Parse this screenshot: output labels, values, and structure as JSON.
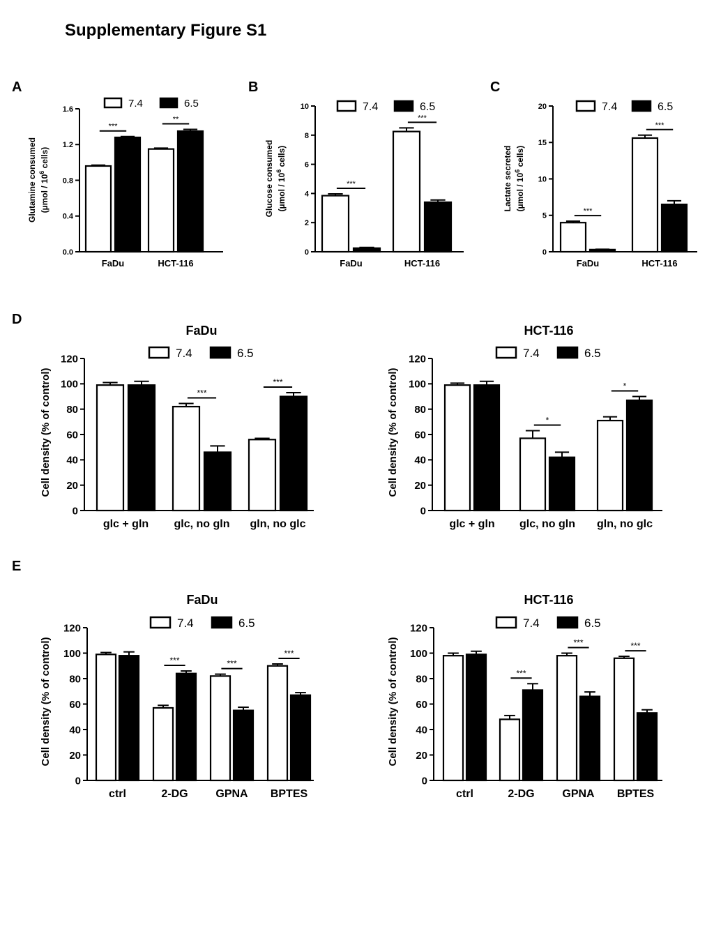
{
  "page_title": "Supplementary Figure S1",
  "panel_labels": [
    "A",
    "B",
    "C",
    "D",
    "E"
  ],
  "legend": {
    "white": "7.4",
    "black": "6.5"
  },
  "chart_data": [
    {
      "id": "A",
      "type": "bar",
      "title": "",
      "categories": [
        "FaDu",
        "HCT-116"
      ],
      "series": [
        {
          "name": "7.4",
          "values": [
            0.96,
            1.15
          ],
          "errors": [
            0.01,
            0.01
          ],
          "color": "#ffffff"
        },
        {
          "name": "6.5",
          "values": [
            1.28,
            1.35
          ],
          "errors": [
            0.01,
            0.02
          ],
          "color": "#000000"
        }
      ],
      "ylabel_lines": [
        "Glutamine consumed",
        "(µmol / 10",
        "6",
        " cells)"
      ],
      "ylim": [
        0,
        1.6
      ],
      "yticks": [
        "0.0",
        "0.4",
        "0.8",
        "1.2",
        "1.6"
      ],
      "ytick_values": [
        0,
        0.4,
        0.8,
        1.2,
        1.6
      ],
      "significance": [
        "***",
        "**"
      ],
      "legend_placement": "top"
    },
    {
      "id": "B",
      "type": "bar",
      "title": "",
      "categories": [
        "FaDu",
        "HCT-116"
      ],
      "series": [
        {
          "name": "7.4",
          "values": [
            3.85,
            8.25
          ],
          "errors": [
            0.12,
            0.25
          ],
          "color": "#ffffff"
        },
        {
          "name": "6.5",
          "values": [
            0.25,
            3.4
          ],
          "errors": [
            0.05,
            0.15
          ],
          "color": "#000000"
        }
      ],
      "ylabel_lines": [
        "Glucose consumed",
        "(µmol / 10",
        "6",
        " cells)"
      ],
      "ylim": [
        0,
        10
      ],
      "yticks": [
        "0",
        "2",
        "4",
        "6",
        "8",
        "10"
      ],
      "ytick_values": [
        0,
        2,
        4,
        6,
        8,
        10
      ],
      "significance": [
        "***",
        "***"
      ],
      "legend_placement": "top"
    },
    {
      "id": "C",
      "type": "bar",
      "title": "",
      "categories": [
        "FaDu",
        "HCT-116"
      ],
      "series": [
        {
          "name": "7.4",
          "values": [
            4.0,
            15.6
          ],
          "errors": [
            0.2,
            0.4
          ],
          "color": "#ffffff"
        },
        {
          "name": "6.5",
          "values": [
            0.3,
            6.5
          ],
          "errors": [
            0.05,
            0.5
          ],
          "color": "#000000"
        }
      ],
      "ylabel_lines": [
        "Lactate secreted",
        "(µmol / 10",
        "6",
        " cells)"
      ],
      "ylim": [
        0,
        20
      ],
      "yticks": [
        "0",
        "5",
        "10",
        "15",
        "20"
      ],
      "ytick_values": [
        0,
        5,
        10,
        15,
        20
      ],
      "significance": [
        "***",
        "***"
      ],
      "legend_placement": "top"
    },
    {
      "id": "D-FaDu",
      "type": "bar",
      "title": "FaDu",
      "categories": [
        "glc + gln",
        "glc, no gln",
        "gln, no glc"
      ],
      "series": [
        {
          "name": "7.4",
          "values": [
            99,
            82,
            56
          ],
          "errors": [
            2,
            2.5,
            1
          ],
          "color": "#ffffff"
        },
        {
          "name": "6.5",
          "values": [
            99,
            46,
            90
          ],
          "errors": [
            3,
            5,
            3
          ],
          "color": "#000000"
        }
      ],
      "ylabel_lines": [
        "Cell density (% of control)"
      ],
      "ylim": [
        0,
        120
      ],
      "yticks": [
        "0",
        "20",
        "40",
        "60",
        "80",
        "100",
        "120"
      ],
      "ytick_values": [
        0,
        20,
        40,
        60,
        80,
        100,
        120
      ],
      "significance": [
        "",
        "***",
        "***"
      ],
      "legend_placement": "top"
    },
    {
      "id": "D-HCT-116",
      "type": "bar",
      "title": "HCT-116",
      "categories": [
        "glc + gln",
        "glc, no gln",
        "gln, no glc"
      ],
      "series": [
        {
          "name": "7.4",
          "values": [
            99,
            57,
            71
          ],
          "errors": [
            1.5,
            6,
            3
          ],
          "color": "#ffffff"
        },
        {
          "name": "6.5",
          "values": [
            99,
            42,
            87
          ],
          "errors": [
            3,
            4,
            3
          ],
          "color": "#000000"
        }
      ],
      "ylabel_lines": [
        "Cell density (% of control)"
      ],
      "ylim": [
        0,
        120
      ],
      "yticks": [
        "0",
        "20",
        "40",
        "60",
        "80",
        "100",
        "120"
      ],
      "ytick_values": [
        0,
        20,
        40,
        60,
        80,
        100,
        120
      ],
      "significance": [
        "",
        "*",
        "*"
      ],
      "legend_placement": "top"
    },
    {
      "id": "E-FaDu",
      "type": "bar",
      "title": "FaDu",
      "categories": [
        "ctrl",
        "2-DG",
        "GPNA",
        "BPTES"
      ],
      "series": [
        {
          "name": "7.4",
          "values": [
            99,
            57,
            82,
            90
          ],
          "errors": [
            1.5,
            2,
            1.5,
            1.5
          ],
          "color": "#ffffff"
        },
        {
          "name": "6.5",
          "values": [
            98,
            84,
            55,
            67
          ],
          "errors": [
            3,
            2,
            2.5,
            2
          ],
          "color": "#000000"
        }
      ],
      "ylabel_lines": [
        "Cell density (% of control)"
      ],
      "ylim": [
        0,
        120
      ],
      "yticks": [
        "0",
        "20",
        "40",
        "60",
        "80",
        "100",
        "120"
      ],
      "ytick_values": [
        0,
        20,
        40,
        60,
        80,
        100,
        120
      ],
      "significance": [
        "",
        "***",
        "***",
        "***"
      ],
      "legend_placement": "top"
    },
    {
      "id": "E-HCT-116",
      "type": "bar",
      "title": "HCT-116",
      "categories": [
        "ctrl",
        "2-DG",
        "GPNA",
        "BPTES"
      ],
      "series": [
        {
          "name": "7.4",
          "values": [
            98,
            48,
            98,
            96
          ],
          "errors": [
            2,
            3,
            2,
            1.5
          ],
          "color": "#ffffff"
        },
        {
          "name": "6.5",
          "values": [
            99,
            71,
            66,
            53
          ],
          "errors": [
            2.5,
            5,
            3.5,
            2.5
          ],
          "color": "#000000"
        }
      ],
      "ylabel_lines": [
        "Cell density (% of control)"
      ],
      "ylim": [
        0,
        120
      ],
      "yticks": [
        "0",
        "20",
        "40",
        "60",
        "80",
        "100",
        "120"
      ],
      "ytick_values": [
        0,
        20,
        40,
        60,
        80,
        100,
        120
      ],
      "significance": [
        "",
        "***",
        "***",
        "***"
      ],
      "legend_placement": "top"
    }
  ]
}
